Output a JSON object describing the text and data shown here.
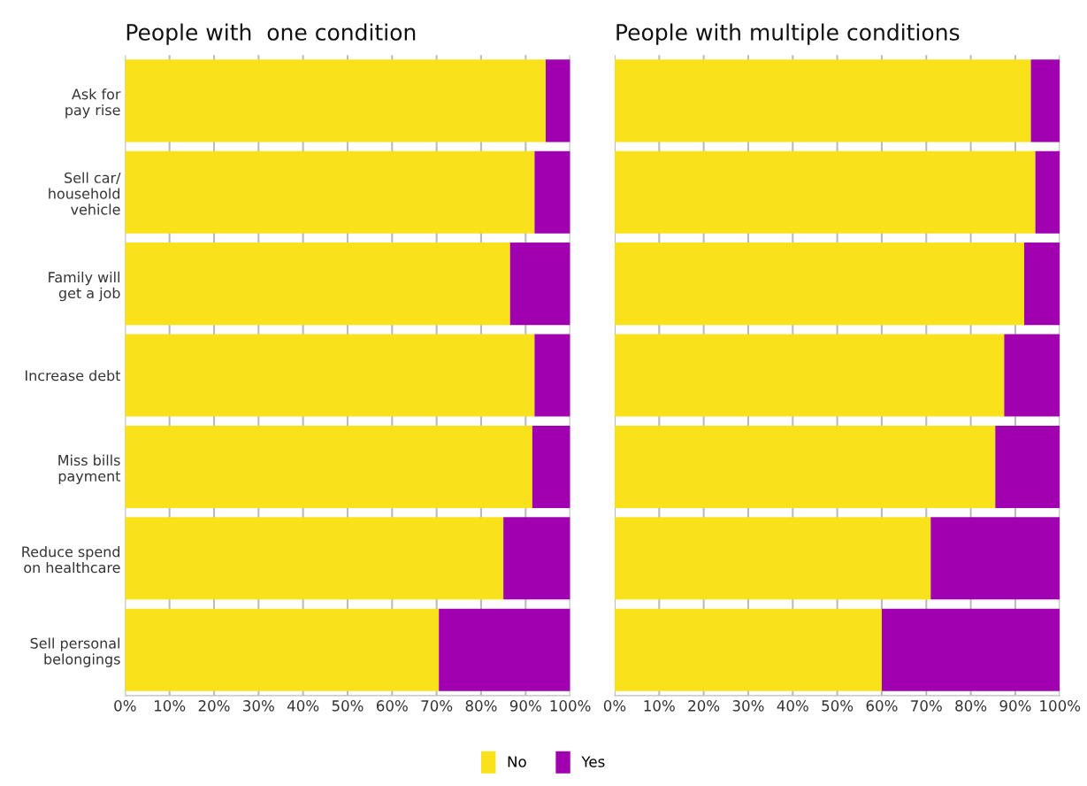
{
  "chart_data": [
    {
      "type": "bar",
      "orientation": "horizontal",
      "stacked": true,
      "title": "People with  one condition",
      "categories": [
        "Ask for\npay rise",
        "Sell car/\nhousehold\nvehicle",
        "Family will\nget a job",
        "Increase debt",
        "Miss bills\npayment",
        "Reduce spend\non healthcare",
        "Sell personal\nbelongings"
      ],
      "series": [
        {
          "name": "No",
          "color": "#f9e21a",
          "values": [
            94.5,
            92,
            86.5,
            92,
            91.5,
            85,
            70.5
          ]
        },
        {
          "name": "Yes",
          "color": "#a100b0",
          "values": [
            5.5,
            8,
            13.5,
            8,
            8.5,
            15,
            29.5
          ]
        }
      ],
      "xlim": [
        0,
        100
      ],
      "xticks": [
        {
          "value": 0,
          "label": "0%"
        },
        {
          "value": 10,
          "label": "10%"
        },
        {
          "value": 20,
          "label": "20%"
        },
        {
          "value": 30,
          "label": "30%"
        },
        {
          "value": 40,
          "label": "40%"
        },
        {
          "value": 50,
          "label": "50%"
        },
        {
          "value": 60,
          "label": "60%"
        },
        {
          "value": 70,
          "label": "70%"
        },
        {
          "value": 80,
          "label": "80%"
        },
        {
          "value": 90,
          "label": "90%"
        },
        {
          "value": 100,
          "label": "100%"
        }
      ],
      "grid": "x",
      "legend": "bottom"
    },
    {
      "type": "bar",
      "orientation": "horizontal",
      "stacked": true,
      "title": "People with multiple conditions",
      "categories": [
        "Ask for\npay rise",
        "Sell car/\nhousehold\nvehicle",
        "Family will\nget a job",
        "Increase debt",
        "Miss bills\npayment",
        "Reduce spend\non healthcare",
        "Sell personal\nbelongings"
      ],
      "series": [
        {
          "name": "No",
          "color": "#f9e21a",
          "values": [
            93.5,
            94.5,
            92,
            87.5,
            85.5,
            71,
            60
          ]
        },
        {
          "name": "Yes",
          "color": "#a100b0",
          "values": [
            6.5,
            5.5,
            8,
            12.5,
            14.5,
            29,
            40
          ]
        }
      ],
      "xlim": [
        0,
        100
      ],
      "xticks": [
        {
          "value": 0,
          "label": "0%"
        },
        {
          "value": 10,
          "label": "10%"
        },
        {
          "value": 20,
          "label": "20%"
        },
        {
          "value": 30,
          "label": "30%"
        },
        {
          "value": 40,
          "label": "40%"
        },
        {
          "value": 50,
          "label": "50%"
        },
        {
          "value": 60,
          "label": "60%"
        },
        {
          "value": 70,
          "label": "70%"
        },
        {
          "value": 80,
          "label": "80%"
        },
        {
          "value": 90,
          "label": "90%"
        },
        {
          "value": 100,
          "label": "100%"
        }
      ],
      "grid": "x",
      "legend": "bottom",
      "tick_labels": "x"
    }
  ]
}
